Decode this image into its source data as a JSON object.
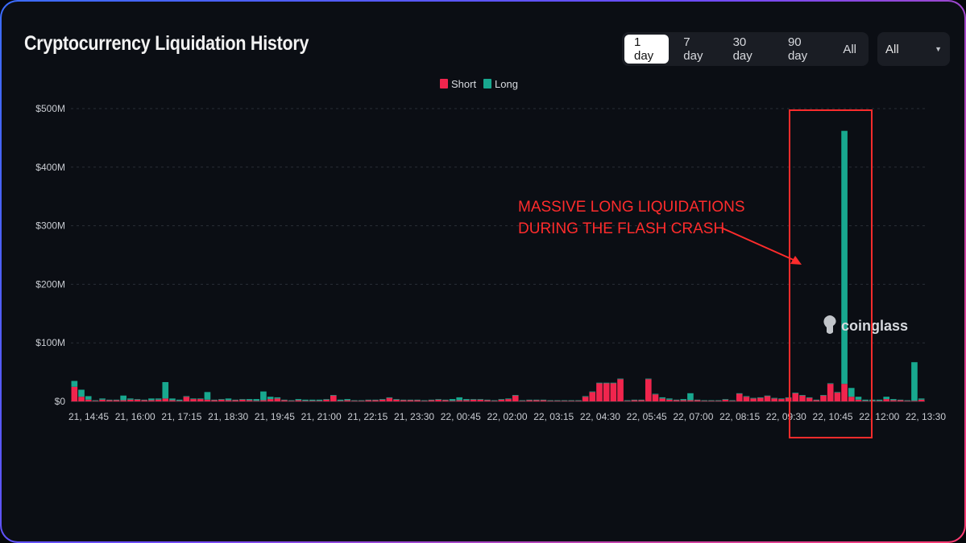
{
  "header": {
    "title": "Cryptocurrency Liquidation History",
    "ranges": [
      "1 day",
      "7 day",
      "30 day",
      "90 day",
      "All"
    ],
    "active_range": "1 day",
    "filter": {
      "value": "All"
    }
  },
  "colors": {
    "short": "#f0254d",
    "long": "#18a88f",
    "annotation": "#ff2c2c",
    "grid": "#2a2e36"
  },
  "watermark": {
    "text": "coinglass",
    "icon": "coinglass-logo-icon"
  },
  "annotation": {
    "lines": [
      "MASSIVE LONG LIQUIDATIONS",
      "DURING THE FLASH CRASH"
    ]
  },
  "chart_data": {
    "type": "bar",
    "stacked": true,
    "unit": "USD (millions)",
    "ylim": [
      0,
      500
    ],
    "yticks": [
      0,
      100,
      200,
      300,
      400,
      500
    ],
    "ytick_labels": [
      "$0",
      "$100M",
      "$200M",
      "$300M",
      "$400M",
      "$500M"
    ],
    "xtick_labels": [
      "21, 14:45",
      "21, 16:00",
      "21, 17:15",
      "21, 18:30",
      "21, 19:45",
      "21, 21:00",
      "21, 22:15",
      "21, 23:30",
      "22, 00:45",
      "22, 02:00",
      "22, 03:15",
      "22, 04:30",
      "22, 05:45",
      "22, 07:00",
      "22, 08:15",
      "22, 09:30",
      "22, 10:45",
      "22, 12:00",
      "22, 13:30"
    ],
    "grid": true,
    "legend": {
      "position": "top-center",
      "entries": [
        "Short",
        "Long"
      ]
    },
    "series": [
      {
        "name": "Short",
        "values": [
          25,
          8,
          3,
          1,
          3,
          2,
          2,
          2,
          3,
          3,
          2,
          2,
          3,
          5,
          2,
          1,
          8,
          4,
          4,
          3,
          2,
          3,
          2,
          2,
          3,
          2,
          1,
          2,
          4,
          5,
          2,
          1,
          2,
          1,
          1,
          1,
          3,
          10,
          1,
          2,
          1,
          1,
          2,
          2,
          3,
          6,
          3,
          2,
          2,
          2,
          1,
          2,
          3,
          2,
          1,
          2,
          2,
          3,
          3,
          2,
          1,
          3,
          4,
          10,
          1,
          2,
          2,
          2,
          1,
          1,
          1,
          1,
          1,
          8,
          16,
          31,
          31,
          31,
          38,
          1,
          2,
          2,
          38,
          12,
          5,
          3,
          2,
          2,
          2,
          2,
          1,
          1,
          1,
          3,
          1,
          13,
          8,
          5,
          6,
          9,
          5,
          4,
          6,
          14,
          10,
          6,
          2,
          10,
          30,
          15,
          30,
          8,
          3,
          1,
          1,
          1,
          4,
          2,
          2,
          1,
          1,
          3
        ]
      },
      {
        "name": "Long",
        "values": [
          10,
          12,
          6,
          1,
          2,
          1,
          1,
          8,
          2,
          1,
          1,
          3,
          2,
          28,
          3,
          2,
          1,
          1,
          1,
          13,
          1,
          1,
          3,
          1,
          1,
          2,
          3,
          15,
          4,
          2,
          1,
          1,
          2,
          2,
          2,
          2,
          1,
          1,
          2,
          2,
          1,
          1,
          1,
          1,
          1,
          1,
          1,
          1,
          1,
          1,
          1,
          1,
          1,
          1,
          3,
          5,
          2,
          1,
          1,
          1,
          1,
          1,
          1,
          1,
          1,
          1,
          1,
          1,
          1,
          1,
          1,
          1,
          1,
          1,
          1,
          1,
          1,
          1,
          1,
          1,
          1,
          1,
          1,
          1,
          2,
          2,
          1,
          2,
          12,
          1,
          1,
          1,
          1,
          1,
          1,
          1,
          1,
          1,
          1,
          1,
          1,
          1,
          1,
          1,
          1,
          1,
          1,
          1,
          1,
          1,
          432,
          15,
          5,
          2,
          2,
          2,
          4,
          2,
          1,
          1,
          66,
          2
        ]
      }
    ]
  }
}
